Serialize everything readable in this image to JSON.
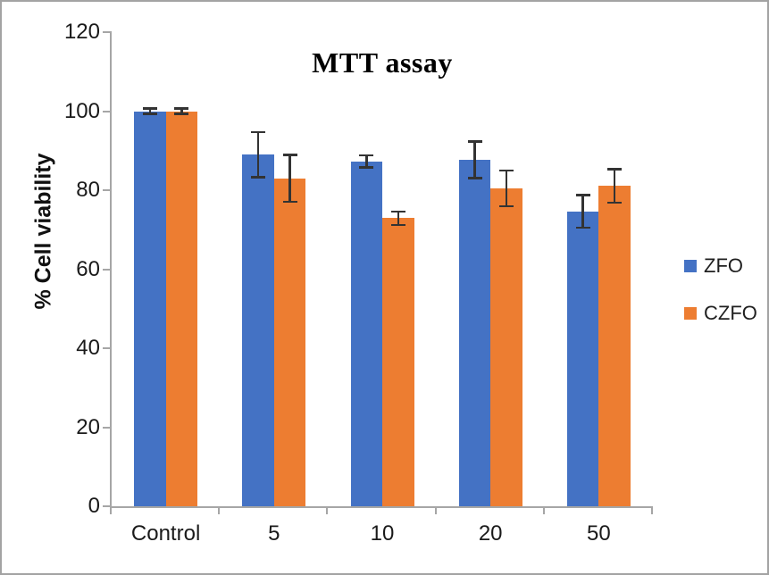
{
  "chart_data": {
    "type": "bar",
    "title": "MTT assay",
    "ylabel": "% Cell viability",
    "xlabel": "",
    "categories": [
      "Control",
      "5",
      "10",
      "20",
      "50"
    ],
    "series": [
      {
        "name": "ZFO",
        "color": "#4472c4",
        "values": [
          100,
          89,
          87.3,
          87.7,
          74.6
        ],
        "errors": [
          1,
          6,
          1.8,
          4.9,
          4.4
        ]
      },
      {
        "name": "CZFO",
        "color": "#ed7d31",
        "values": [
          100,
          83,
          72.9,
          80.5,
          81.1
        ],
        "errors": [
          1,
          6.2,
          2,
          4.8,
          4.5
        ]
      }
    ],
    "ylim": [
      0,
      120
    ],
    "yticks": [
      0,
      20,
      40,
      60,
      80,
      100,
      120
    ],
    "grid": false,
    "legend_position": "right",
    "error_bars": true
  }
}
